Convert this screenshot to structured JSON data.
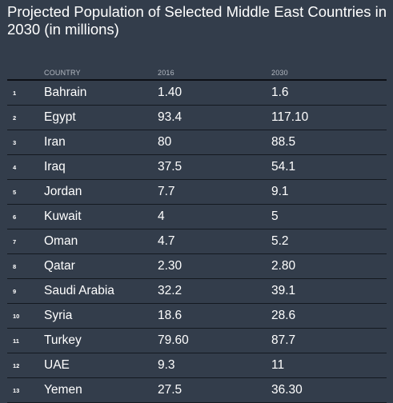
{
  "chart_data": {
    "type": "table",
    "title": "Projected Population of Selected Middle East Countries in 2030 (in millions)",
    "columns": [
      "COUNTRY",
      "2016",
      "2030"
    ],
    "rows": [
      {
        "rank": "1",
        "country": "Bahrain",
        "y2016": "1.40",
        "y2030": "1.6"
      },
      {
        "rank": "2",
        "country": "Egypt",
        "y2016": "93.4",
        "y2030": "117.10"
      },
      {
        "rank": "3",
        "country": "Iran",
        "y2016": "80",
        "y2030": "88.5"
      },
      {
        "rank": "4",
        "country": "Iraq",
        "y2016": "37.5",
        "y2030": "54.1"
      },
      {
        "rank": "5",
        "country": "Jordan",
        "y2016": "7.7",
        "y2030": "9.1"
      },
      {
        "rank": "6",
        "country": "Kuwait",
        "y2016": "4",
        "y2030": "5"
      },
      {
        "rank": "7",
        "country": "Oman",
        "y2016": "4.7",
        "y2030": "5.2"
      },
      {
        "rank": "8",
        "country": "Qatar",
        "y2016": "2.30",
        "y2030": "2.80"
      },
      {
        "rank": "9",
        "country": "Saudi Arabia",
        "y2016": "32.2",
        "y2030": "39.1"
      },
      {
        "rank": "10",
        "country": "Syria",
        "y2016": "18.6",
        "y2030": "28.6"
      },
      {
        "rank": "11",
        "country": "Turkey",
        "y2016": "79.60",
        "y2030": "87.7"
      },
      {
        "rank": "12",
        "country": "UAE",
        "y2016": "9.3",
        "y2030": "11"
      },
      {
        "rank": "13",
        "country": "Yemen",
        "y2016": "27.5",
        "y2030": "36.30"
      }
    ]
  },
  "colors": {
    "background": "#333d4b",
    "text": "#ffffff",
    "header_text": "#b3b9c2",
    "rule": "#0d1016"
  }
}
